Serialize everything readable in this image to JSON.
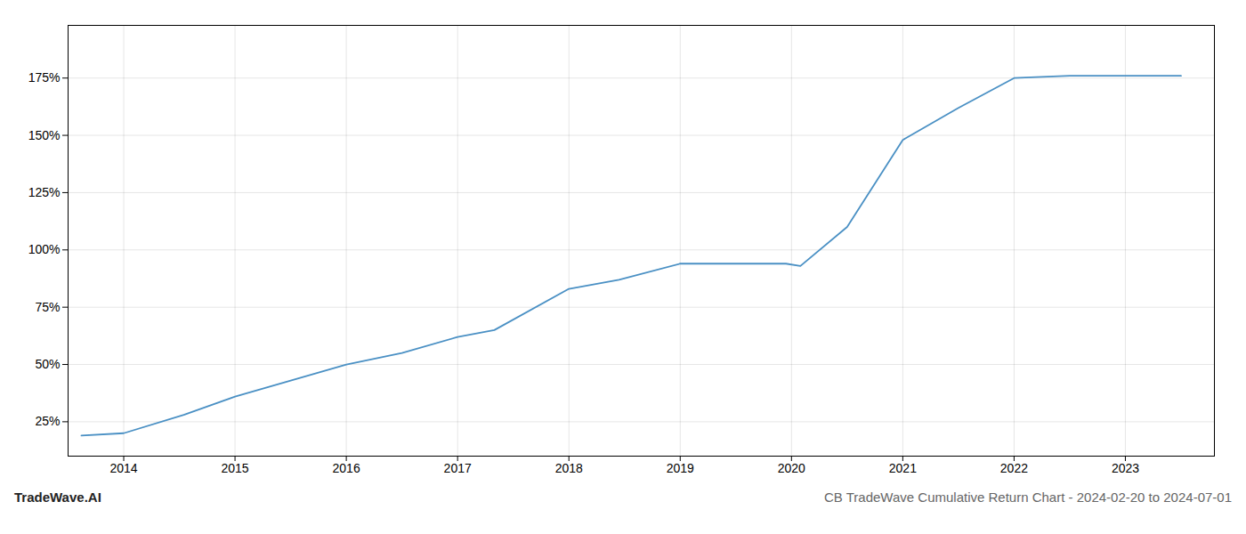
{
  "chart_data": {
    "type": "line",
    "title": "CB TradeWave Cumulative Return Chart - 2024-02-20 to 2024-07-01",
    "annotations": [
      "TradeWave.AI"
    ],
    "x": [
      2013.62,
      2014.0,
      2014.54,
      2015.0,
      2015.5,
      2016.0,
      2016.5,
      2017.0,
      2017.33,
      2018.0,
      2018.45,
      2019.0,
      2019.5,
      2019.95,
      2020.08,
      2020.5,
      2021.0,
      2021.5,
      2022.0,
      2022.5,
      2023.0,
      2023.5
    ],
    "values": [
      19,
      20,
      28,
      36,
      43,
      50,
      55,
      62,
      65,
      83,
      87,
      94,
      94,
      94,
      93,
      110,
      148,
      162,
      175,
      176,
      176,
      176
    ],
    "color": "#4a90c4",
    "xlim": [
      2013.5,
      2023.8
    ],
    "xticks": [
      2014,
      2015,
      2016,
      2017,
      2018,
      2019,
      2020,
      2021,
      2022,
      2023
    ],
    "ylim": [
      10,
      198
    ],
    "yticks": [
      {
        "value": 25,
        "label": "25%"
      },
      {
        "value": 50,
        "label": "50%"
      },
      {
        "value": 75,
        "label": "75%"
      },
      {
        "value": 100,
        "label": "100%"
      },
      {
        "value": 125,
        "label": "125%"
      },
      {
        "value": 150,
        "label": "150%"
      },
      {
        "value": 175,
        "label": "175%"
      }
    ],
    "grid": true
  }
}
